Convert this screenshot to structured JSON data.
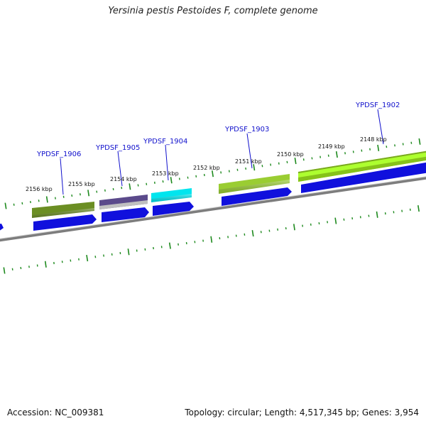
{
  "title": "Yersinia pestis Pestoides F, complete genome",
  "footer": {
    "accession": "Accession: NC_009381",
    "summary": "Topology: circular; Length: 4,517,345 bp; Genes: 3,954"
  },
  "tick_labels": [
    "2156 kbp",
    "2155 kbp",
    "2154 kbp",
    "2153 kbp",
    "2152 kbp",
    "2151 kbp",
    "2150 kbp",
    "2149 kbp",
    "2148 kbp"
  ],
  "genes": [
    {
      "id": "YPDSF_1906",
      "color": "#6b8e23"
    },
    {
      "id": "YPDSF_1905",
      "color": "#5b4a8b"
    },
    {
      "id": "YPDSF_1904",
      "color": "#00e5ee"
    },
    {
      "id": "YPDSF_1903",
      "color": "#9acd32"
    },
    {
      "id": "YPDSF_1902",
      "color": "#adff2f"
    }
  ],
  "colors": {
    "cds": "#1010dd",
    "backbone": "#808080",
    "ticks": "#1e8a1e",
    "label_line": "#1010cc"
  }
}
